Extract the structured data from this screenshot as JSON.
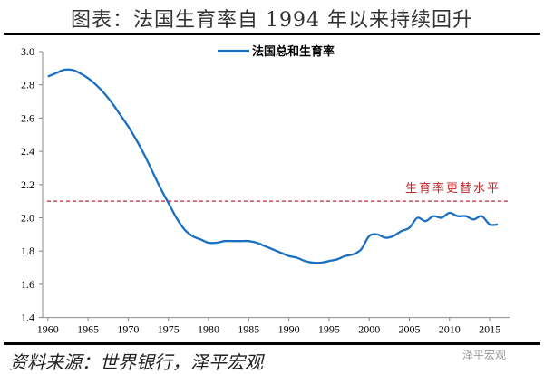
{
  "title": "图表：法国生育率自 1994 年以来持续回升",
  "source": "资料来源：世界银行，泽平宏观",
  "watermark": "泽平宏观",
  "chart_data": {
    "type": "line",
    "title": "",
    "xlabel": "",
    "ylabel": "",
    "xlim": [
      1960,
      2016
    ],
    "ylim": [
      1.4,
      3.0
    ],
    "yticks": [
      "1.4",
      "1.6",
      "1.8",
      "2.0",
      "2.2",
      "2.4",
      "2.6",
      "2.8",
      "3.0"
    ],
    "xticks": [
      "1960",
      "1965",
      "1970",
      "1975",
      "1980",
      "1985",
      "1990",
      "1995",
      "2000",
      "2005",
      "2010",
      "2015"
    ],
    "grid": false,
    "legend": "top-center",
    "series": [
      {
        "name": "法国总和生育率",
        "color": "#1a6fc0",
        "x": [
          1960,
          1961,
          1962,
          1963,
          1964,
          1965,
          1966,
          1967,
          1968,
          1969,
          1970,
          1971,
          1972,
          1973,
          1974,
          1975,
          1976,
          1977,
          1978,
          1979,
          1980,
          1981,
          1982,
          1983,
          1984,
          1985,
          1986,
          1987,
          1988,
          1989,
          1990,
          1991,
          1992,
          1993,
          1994,
          1995,
          1996,
          1997,
          1998,
          1999,
          2000,
          2001,
          2002,
          2003,
          2004,
          2005,
          2006,
          2007,
          2008,
          2009,
          2010,
          2011,
          2012,
          2013,
          2014,
          2015,
          2016
        ],
        "y": [
          2.85,
          2.87,
          2.89,
          2.89,
          2.87,
          2.84,
          2.8,
          2.75,
          2.69,
          2.62,
          2.55,
          2.47,
          2.38,
          2.28,
          2.18,
          2.09,
          2.0,
          1.93,
          1.89,
          1.87,
          1.85,
          1.85,
          1.86,
          1.86,
          1.86,
          1.86,
          1.85,
          1.83,
          1.81,
          1.79,
          1.77,
          1.76,
          1.74,
          1.73,
          1.73,
          1.74,
          1.75,
          1.77,
          1.78,
          1.81,
          1.89,
          1.9,
          1.88,
          1.89,
          1.92,
          1.94,
          2.0,
          1.98,
          2.01,
          2.0,
          2.03,
          2.01,
          2.01,
          1.99,
          2.01,
          1.96,
          1.96
        ]
      }
    ],
    "reference_line": {
      "value": 2.1,
      "label": "生育率更替水平",
      "color": "#c0282d"
    }
  }
}
